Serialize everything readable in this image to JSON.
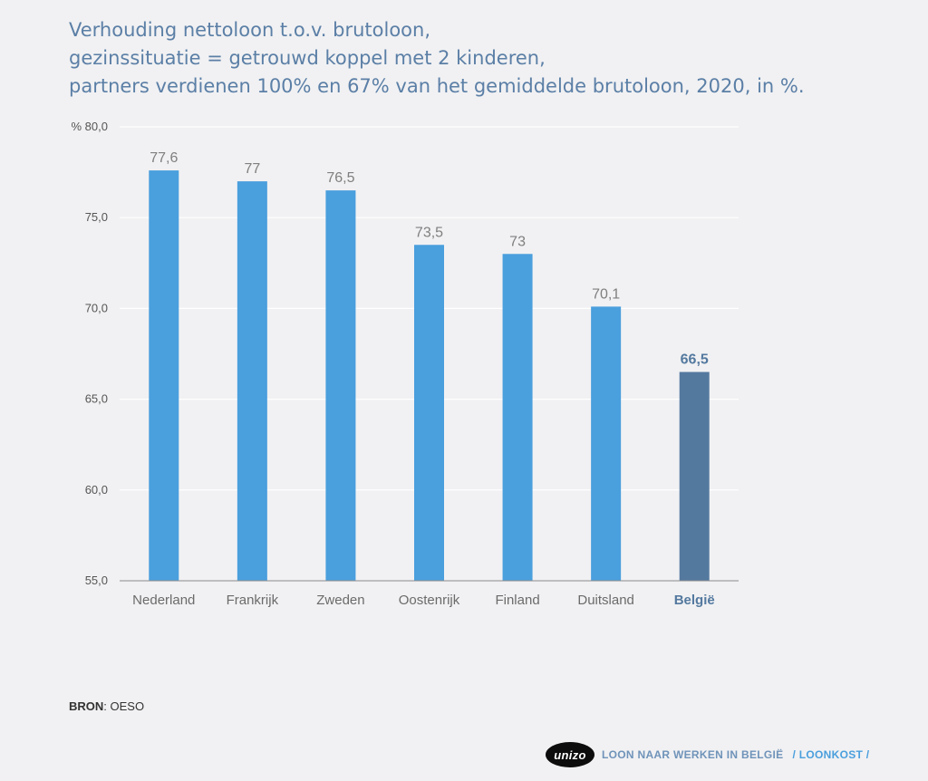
{
  "title": {
    "line1": "Verhouding nettoloon t.o.v. brutoloon,",
    "line2": "gezinssituatie = getrouwd koppel met 2 kinderen,",
    "line3": "partners verdienen 100% en 67% van het gemiddelde brutoloon, 2020, in %."
  },
  "chart_data": {
    "type": "bar",
    "title": "Verhouding nettoloon t.o.v. brutoloon, gezinssituatie = getrouwd koppel met 2 kinderen, partners verdienen 100% en 67% van het gemiddelde brutoloon, 2020, in %.",
    "categories": [
      "Nederland",
      "Frankrijk",
      "Zweden",
      "Oostenrijk",
      "Finland",
      "Duitsland",
      "België"
    ],
    "values": [
      77.6,
      77,
      76.5,
      73.5,
      73,
      70.1,
      66.5
    ],
    "data_labels": [
      "77,6",
      "77",
      "76,5",
      "73,5",
      "73",
      "70,1",
      "66,5"
    ],
    "highlight_index": 6,
    "ylim": [
      55,
      80
    ],
    "yticks": [
      55,
      60,
      65,
      70,
      75,
      80
    ],
    "ytick_labels": [
      "55,0",
      "60,0",
      "65,0",
      "70,0",
      "75,0",
      "80,0"
    ],
    "y_unit_prefix": "%",
    "grid": true,
    "legend": "none",
    "colors": {
      "bar": "#4a9fdd",
      "highlight": "#54799f",
      "label": "#7f7f7f",
      "highlight_label": "#54799f",
      "category": "#6b6b6b",
      "gridline": "#ffffff",
      "axis": "#8c8c8c"
    }
  },
  "source": {
    "label": "BRON",
    "text": ": OESO"
  },
  "footer": {
    "logo": "unizo",
    "text": "LOON NAAR WERKEN IN BELGIË",
    "section": "/ LOONKOST /"
  }
}
